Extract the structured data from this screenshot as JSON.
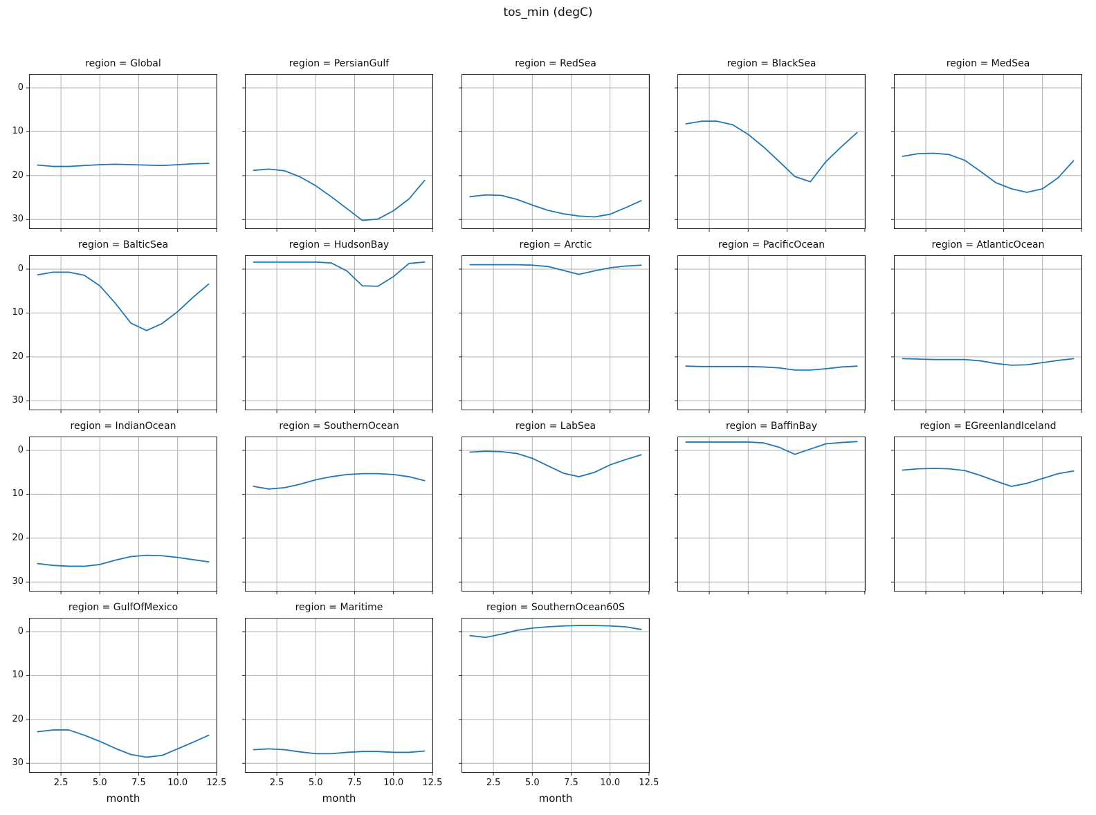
{
  "chart_data": {
    "type": "line",
    "title": "tos_min (degC)",
    "xlabel": "month",
    "x": [
      1,
      2,
      3,
      4,
      5,
      6,
      7,
      8,
      9,
      10,
      11,
      12
    ],
    "xtick_labels": [
      "2.5",
      "5.0",
      "7.5",
      "10.0",
      "12.5"
    ],
    "xtick_values": [
      2.5,
      5.0,
      7.5,
      10.0,
      12.5
    ],
    "ytick_labels": [
      "0",
      "10",
      "20",
      "30"
    ],
    "ytick_values": [
      0,
      10,
      20,
      30
    ],
    "xlim": [
      0.45,
      12.55
    ],
    "ylim_top": -3.15,
    "ylim_bottom": 32.16,
    "y_axis_inverted": true,
    "grid": true,
    "legend_position": "none",
    "line_color": "#1f77b4",
    "grid_color": "#b0b0b0",
    "spine_color": "#262626",
    "facets": [
      {
        "region": "Global",
        "title": "region = Global",
        "values": [
          17.6,
          17.9,
          17.9,
          17.7,
          17.5,
          17.4,
          17.5,
          17.6,
          17.7,
          17.5,
          17.3,
          17.2
        ]
      },
      {
        "region": "PersianGulf",
        "title": "region = PersianGulf",
        "values": [
          18.8,
          18.5,
          18.9,
          20.3,
          22.3,
          24.8,
          27.5,
          30.2,
          29.9,
          28.0,
          25.3,
          21.1
        ]
      },
      {
        "region": "RedSea",
        "title": "region = RedSea",
        "values": [
          24.8,
          24.4,
          24.5,
          25.4,
          26.7,
          27.9,
          28.7,
          29.2,
          29.4,
          28.8,
          27.3,
          25.7
        ]
      },
      {
        "region": "BlackSea",
        "title": "region = BlackSea",
        "values": [
          8.2,
          7.6,
          7.6,
          8.4,
          10.6,
          13.5,
          16.8,
          20.2,
          21.4,
          16.8,
          13.4,
          10.2
        ]
      },
      {
        "region": "MedSea",
        "title": "region = MedSea",
        "values": [
          15.6,
          15.0,
          14.9,
          15.2,
          16.5,
          19.0,
          21.6,
          23.0,
          23.8,
          23.0,
          20.5,
          16.6
        ]
      },
      {
        "region": "BalticSea",
        "title": "region = BalticSea",
        "values": [
          1.3,
          0.7,
          0.7,
          1.4,
          3.8,
          7.8,
          12.3,
          14.0,
          12.4,
          9.7,
          6.4,
          3.4
        ]
      },
      {
        "region": "HudsonBay",
        "title": "region = HudsonBay",
        "values": [
          -1.6,
          -1.6,
          -1.6,
          -1.6,
          -1.6,
          -1.4,
          0.4,
          3.8,
          3.9,
          1.7,
          -1.3,
          -1.6
        ]
      },
      {
        "region": "Arctic",
        "title": "region = Arctic",
        "values": [
          -1.0,
          -1.0,
          -1.0,
          -1.0,
          -0.9,
          -0.6,
          0.3,
          1.2,
          0.4,
          -0.3,
          -0.7,
          -0.9
        ]
      },
      {
        "region": "PacificOcean",
        "title": "region = PacificOcean",
        "values": [
          22.1,
          22.2,
          22.2,
          22.2,
          22.2,
          22.3,
          22.5,
          23.0,
          23.0,
          22.7,
          22.3,
          22.1
        ]
      },
      {
        "region": "AtlanticOcean",
        "title": "region = AtlanticOcean",
        "values": [
          20.4,
          20.5,
          20.6,
          20.6,
          20.6,
          20.9,
          21.5,
          21.9,
          21.8,
          21.3,
          20.8,
          20.4
        ]
      },
      {
        "region": "IndianOcean",
        "title": "region = IndianOcean",
        "values": [
          25.8,
          26.2,
          26.4,
          26.4,
          26.0,
          25.0,
          24.2,
          23.9,
          24.0,
          24.4,
          24.9,
          25.4
        ]
      },
      {
        "region": "SouthernOcean",
        "title": "region = SouthernOcean",
        "values": [
          8.2,
          8.8,
          8.5,
          7.7,
          6.7,
          6.0,
          5.5,
          5.3,
          5.3,
          5.5,
          6.0,
          6.9
        ]
      },
      {
        "region": "LabSea",
        "title": "region = LabSea",
        "values": [
          0.4,
          0.2,
          0.3,
          0.7,
          1.8,
          3.5,
          5.2,
          6.0,
          5.0,
          3.3,
          2.1,
          1.0
        ]
      },
      {
        "region": "BaffinBay",
        "title": "region = BaffinBay",
        "values": [
          -1.9,
          -1.9,
          -1.9,
          -1.9,
          -1.9,
          -1.7,
          -0.7,
          0.9,
          -0.3,
          -1.5,
          -1.8,
          -2.0
        ]
      },
      {
        "region": "EGreenlandIceland",
        "title": "region = EGreenlandIceland",
        "values": [
          4.5,
          4.2,
          4.1,
          4.2,
          4.6,
          5.7,
          7.0,
          8.2,
          7.5,
          6.4,
          5.3,
          4.7
        ]
      },
      {
        "region": "GulfOfMexico",
        "title": "region = GulfOfMexico",
        "values": [
          22.8,
          22.4,
          22.4,
          23.6,
          25.0,
          26.6,
          28.0,
          28.6,
          28.2,
          26.7,
          25.2,
          23.6
        ]
      },
      {
        "region": "Maritime",
        "title": "region = Maritime",
        "values": [
          26.9,
          26.7,
          26.9,
          27.4,
          27.8,
          27.8,
          27.5,
          27.3,
          27.3,
          27.5,
          27.5,
          27.2
        ]
      },
      {
        "region": "SouthernOcean60S",
        "title": "region = SouthernOcean60S",
        "values": [
          0.9,
          1.3,
          0.6,
          -0.3,
          -0.8,
          -1.1,
          -1.3,
          -1.4,
          -1.4,
          -1.3,
          -1.1,
          -0.5
        ]
      }
    ]
  }
}
